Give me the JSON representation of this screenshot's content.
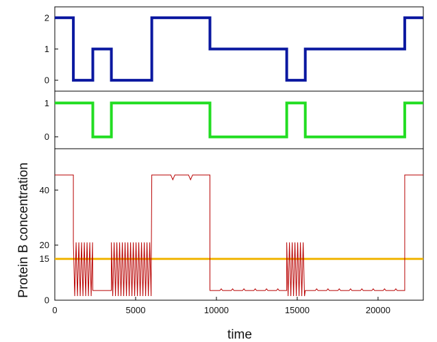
{
  "chart_data": {
    "type": "line",
    "shared_x": {
      "label": "time",
      "range": [
        0,
        22800
      ],
      "ticks": [
        0,
        5000,
        10000,
        15000,
        20000
      ],
      "tick_labels": [
        "0",
        "5000",
        "10000",
        "15000",
        "20000"
      ]
    },
    "panels": [
      {
        "id": "top",
        "ylim": [
          -0.35,
          2.35
        ],
        "yticks": [
          0,
          1,
          2
        ],
        "ytick_labels": [
          "0",
          "1",
          "2"
        ],
        "series": [
          {
            "color": "#0a18a0",
            "kind": "step",
            "x": [
              0,
              1150,
              2350,
              3500,
              6000,
              9600,
              14350,
              15500,
              21650,
              22800
            ],
            "y": [
              2,
              0,
              1,
              0,
              2,
              1,
              0,
              1,
              2,
              2
            ]
          }
        ]
      },
      {
        "id": "middle",
        "ylim": [
          -0.35,
          1.35
        ],
        "yticks": [
          0,
          1
        ],
        "ytick_labels": [
          "0",
          "1"
        ],
        "series": [
          {
            "color": "#22dd22",
            "kind": "step",
            "x": [
              0,
              2350,
              3500,
              9600,
              14350,
              15500,
              21650,
              22800
            ],
            "y": [
              1,
              0,
              1,
              0,
              1,
              0,
              1,
              1
            ]
          }
        ]
      },
      {
        "id": "bottom",
        "ylabel": "Protein B concentration",
        "ylim": [
          0,
          55
        ],
        "yticks": [
          0,
          15,
          20,
          40
        ],
        "ytick_labels": [
          "0",
          "15",
          "20",
          "40"
        ],
        "threshold": {
          "value": 15,
          "color": "#f0b400"
        },
        "series": [
          {
            "color": "#b80000",
            "kind": "trace",
            "segments": [
              {
                "x": [
                  0,
                  1150
                ],
                "level": 45.5
              },
              {
                "x": [
                  1150,
                  2350
                ],
                "oscillation": [
                  1.5,
                  21
                ]
              },
              {
                "x": [
                  2350,
                  3500
                ],
                "level": 3.5
              },
              {
                "x": [
                  3500,
                  6000
                ],
                "oscillation": [
                  1.5,
                  21
                ]
              },
              {
                "x": [
                  6000,
                  9600
                ],
                "level": 45.5,
                "dips_at": [
                  7300,
                  8400
                ]
              },
              {
                "x": [
                  9600,
                  14350
                ],
                "level": 3.5,
                "blips_every": 700
              },
              {
                "x": [
                  14350,
                  15500
                ],
                "oscillation": [
                  1.5,
                  21
                ]
              },
              {
                "x": [
                  15500,
                  21650
                ],
                "level": 3.5,
                "blips_every": 700
              },
              {
                "x": [
                  21650,
                  22800
                ],
                "level": 45.5
              }
            ]
          }
        ]
      }
    ]
  }
}
